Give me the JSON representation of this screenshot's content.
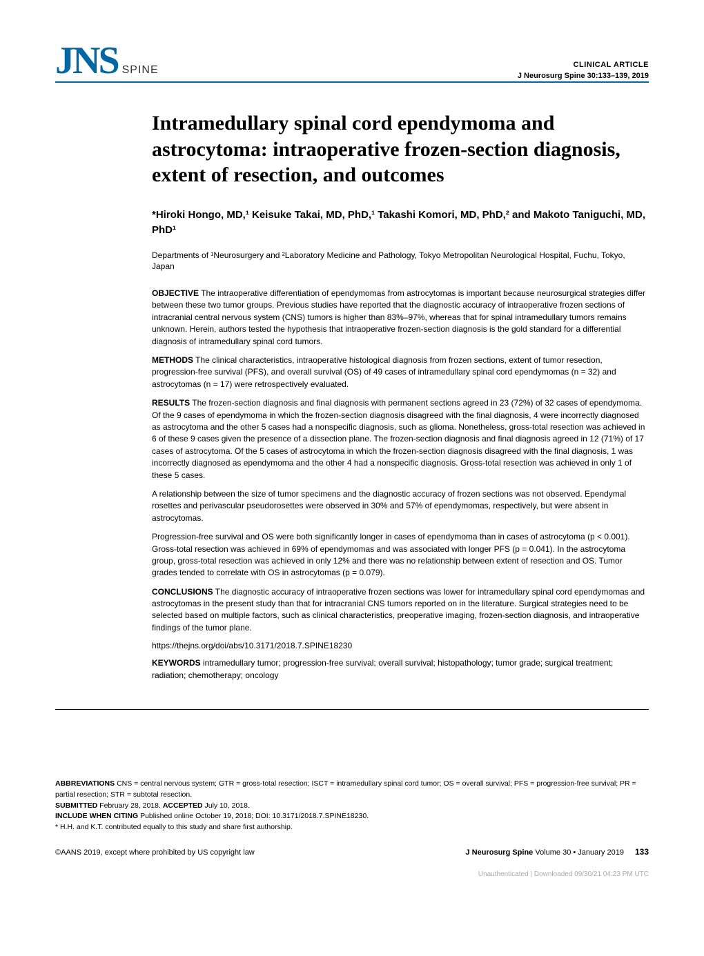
{
  "header": {
    "logo_main": "JNS",
    "logo_sub": "SPINE",
    "article_type": "CLINICAL ARTICLE",
    "journal_ref": "J Neurosurg Spine 30:133–139, 2019"
  },
  "title": "Intramedullary spinal cord ependymoma and astrocytoma: intraoperative frozen-section diagnosis, extent of resection, and outcomes",
  "authors": "*Hiroki Hongo, MD,¹ Keisuke Takai, MD, PhD,¹ Takashi Komori, MD, PhD,² and Makoto Taniguchi, MD, PhD¹",
  "affiliations": "Departments of ¹Neurosurgery and ²Laboratory Medicine and Pathology, Tokyo Metropolitan Neurological Hospital, Fuchu, Tokyo, Japan",
  "abstract": {
    "objective": {
      "label": "OBJECTIVE",
      "text": " The intraoperative differentiation of ependymomas from astrocytomas is important because neurosurgical strategies differ between these two tumor groups. Previous studies have reported that the diagnostic accuracy of intraoperative frozen sections of intracranial central nervous system (CNS) tumors is higher than 83%–97%, whereas that for spinal intramedullary tumors remains unknown. Herein, authors tested the hypothesis that intraoperative frozen-section diagnosis is the gold standard for a differential diagnosis of intramedullary spinal cord tumors."
    },
    "methods": {
      "label": "METHODS",
      "text": " The clinical characteristics, intraoperative histological diagnosis from frozen sections, extent of tumor resection, progression-free survival (PFS), and overall survival (OS) of 49 cases of intramedullary spinal cord ependymomas (n = 32) and astrocytomas (n = 17) were retrospectively evaluated."
    },
    "results": {
      "label": "RESULTS",
      "p1": " The frozen-section diagnosis and final diagnosis with permanent sections agreed in 23 (72%) of 32 cases of ependymoma. Of the 9 cases of ependymoma in which the frozen-section diagnosis disagreed with the final diagnosis, 4 were incorrectly diagnosed as astrocytoma and the other 5 cases had a nonspecific diagnosis, such as glioma. Nonetheless, gross-total resection was achieved in 6 of these 9 cases given the presence of a dissection plane. The frozen-section diagnosis and final diagnosis agreed in 12 (71%) of 17 cases of astrocytoma. Of the 5 cases of astrocytoma in which the frozen-section diagnosis disagreed with the final diagnosis, 1 was incorrectly diagnosed as ependymoma and the other 4 had a nonspecific diagnosis. Gross-total resection was achieved in only 1 of these 5 cases.",
      "p2": "A relationship between the size of tumor specimens and the diagnostic accuracy of frozen sections was not observed. Ependymal rosettes and perivascular pseudorosettes were observed in 30% and 57% of ependymomas, respectively, but were absent in astrocytomas.",
      "p3": "Progression-free survival and OS were both significantly longer in cases of ependymoma than in cases of astrocytoma (p < 0.001). Gross-total resection was achieved in 69% of ependymomas and was associated with longer PFS (p = 0.041). In the astrocytoma group, gross-total resection was achieved in only 12% and there was no relationship between extent of resection and OS. Tumor grades tended to correlate with OS in astrocytomas (p = 0.079)."
    },
    "conclusions": {
      "label": "CONCLUSIONS",
      "text": " The diagnostic accuracy of intraoperative frozen sections was lower for intramedullary spinal cord ependymomas and astrocytomas in the present study than that for intracranial CNS tumors reported on in the literature. Surgical strategies need to be selected based on multiple factors, such as clinical characteristics, preoperative imaging, frozen-section diagnosis, and intraoperative findings of the tumor plane."
    }
  },
  "doi_link": "https://thejns.org/doi/abs/10.3171/2018.7.SPINE18230",
  "keywords": {
    "label": "KEYWORDS",
    "text": " intramedullary tumor; progression-free survival; overall survival; histopathology; tumor grade; surgical treatment; radiation; chemotherapy; oncology"
  },
  "footer": {
    "abbreviations": {
      "label": "ABBREVIATIONS",
      "text": " CNS = central nervous system; GTR = gross-total resection; ISCT = intramedullary spinal cord tumor; OS = overall survival; PFS = progression-free survival; PR = partial resection; STR = subtotal resection."
    },
    "submitted": {
      "submitted_label": "SUBMITTED",
      "submitted_text": " February 28, 2018. ",
      "accepted_label": "ACCEPTED",
      "accepted_text": " July 10, 2018."
    },
    "citing": {
      "label": "INCLUDE WHEN CITING",
      "text": " Published online October 19, 2018; DOI: 10.3171/2018.7.SPINE18230."
    },
    "contribution": "* H.H. and K.T. contributed equally to this study and share first authorship."
  },
  "bottom": {
    "copyright": "©AANS 2019, except where prohibited by US copyright law",
    "journal": "J Neurosurg Spine",
    "volume": " Volume 30 • January 2019",
    "page": "133"
  },
  "watermark": "Unauthenticated | Downloaded 09/30/21 04:23 PM UTC"
}
